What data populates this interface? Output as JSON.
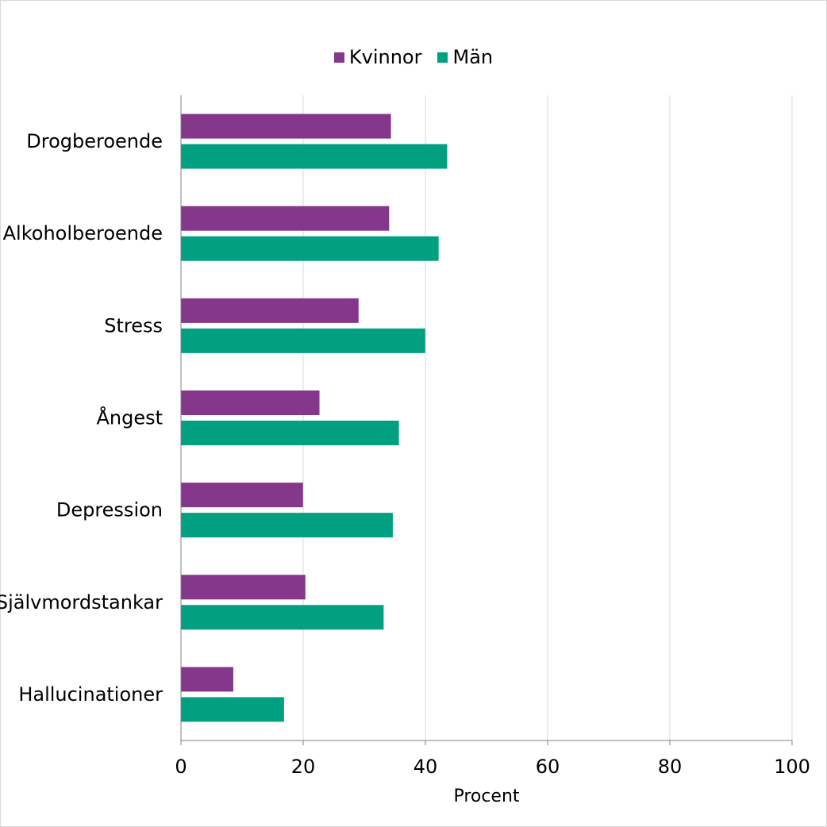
{
  "chart_data": {
    "type": "bar",
    "orientation": "horizontal",
    "categories": [
      "Drogberoende",
      "Alkoholberoende",
      "Stress",
      "Ångest",
      "Depression",
      "Självmordstankar",
      "Hallucinationer"
    ],
    "series": [
      {
        "name": "Kvinnor",
        "color": "#84378b",
        "values": [
          34.3,
          34.0,
          29.0,
          22.6,
          19.9,
          20.3,
          8.5
        ]
      },
      {
        "name": "Män",
        "color": "#00a081",
        "values": [
          43.5,
          42.1,
          39.9,
          35.6,
          34.6,
          33.1,
          16.8
        ]
      }
    ],
    "xlabel": "Procent",
    "ylabel": "",
    "xlim": [
      0,
      100
    ],
    "xticks": [
      0,
      20,
      40,
      60,
      80,
      100
    ],
    "grid": "vertical",
    "legend_position": "top"
  }
}
